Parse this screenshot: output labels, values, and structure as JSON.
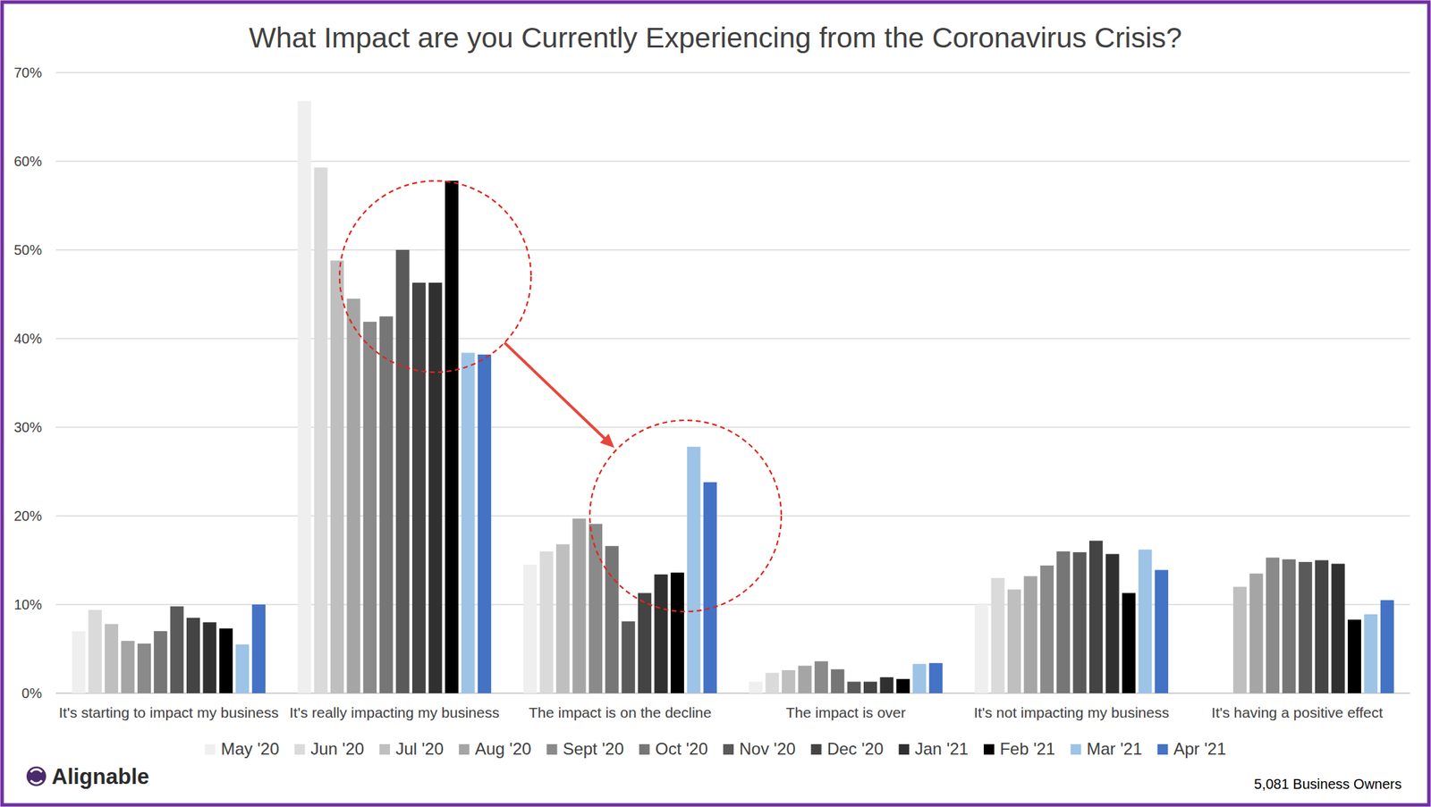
{
  "chart_data": {
    "type": "bar",
    "title": "What Impact are you Currently Experiencing from the Coronavirus Crisis?",
    "categories": [
      "It's starting to impact my business",
      "It's really impacting my business",
      "The impact is on the decline",
      "The impact is over",
      "It's not impacting my business",
      "It's having a positive effect"
    ],
    "series": [
      {
        "name": "May '20",
        "color": "#efefef",
        "values": [
          7.0,
          66.8,
          14.5,
          1.3,
          10.0,
          null
        ]
      },
      {
        "name": "Jun '20",
        "color": "#dadada",
        "values": [
          9.4,
          59.3,
          16.0,
          2.3,
          13.0,
          null
        ]
      },
      {
        "name": "Jul '20",
        "color": "#bfbfbf",
        "values": [
          7.8,
          48.8,
          16.8,
          2.6,
          11.7,
          12.0
        ]
      },
      {
        "name": "Aug '20",
        "color": "#a5a5a5",
        "values": [
          5.9,
          44.5,
          19.7,
          3.1,
          13.2,
          13.5
        ]
      },
      {
        "name": "Sept '20",
        "color": "#8a8a8a",
        "values": [
          5.6,
          41.9,
          19.1,
          3.6,
          14.4,
          15.3
        ]
      },
      {
        "name": "Oct '20",
        "color": "#767676",
        "values": [
          7.0,
          42.5,
          16.6,
          2.7,
          16.0,
          15.1
        ]
      },
      {
        "name": "Nov '20",
        "color": "#5a5a5a",
        "values": [
          9.8,
          50.0,
          8.1,
          1.3,
          15.9,
          14.8
        ]
      },
      {
        "name": "Dec '20",
        "color": "#444444",
        "values": [
          8.5,
          46.3,
          11.3,
          1.3,
          17.2,
          15.0
        ]
      },
      {
        "name": "Jan '21",
        "color": "#303030",
        "values": [
          8.0,
          46.3,
          13.4,
          1.8,
          15.7,
          14.6
        ]
      },
      {
        "name": "Feb '21",
        "color": "#000000",
        "values": [
          7.3,
          57.8,
          13.6,
          1.6,
          11.3,
          8.3
        ]
      },
      {
        "name": "Mar '21",
        "color": "#9dc3e6",
        "values": [
          5.5,
          38.4,
          27.8,
          3.3,
          16.2,
          8.9
        ]
      },
      {
        "name": "Apr '21",
        "color": "#4472c4",
        "values": [
          10.0,
          38.2,
          23.8,
          3.4,
          13.9,
          10.5
        ]
      }
    ],
    "ylim": [
      0,
      70
    ],
    "yticks": [
      {
        "value": 0,
        "label": "0%"
      },
      {
        "value": 10,
        "label": "10%"
      },
      {
        "value": 20,
        "label": "20%"
      },
      {
        "value": 30,
        "label": "30%"
      },
      {
        "value": 40,
        "label": "40%"
      },
      {
        "value": 50,
        "label": "50%"
      },
      {
        "value": 60,
        "label": "60%"
      },
      {
        "value": 70,
        "label": "70%"
      }
    ],
    "grid": true,
    "legend": "bottom",
    "annotations": [
      "Alignable",
      "5,081 Business Owners"
    ]
  }
}
